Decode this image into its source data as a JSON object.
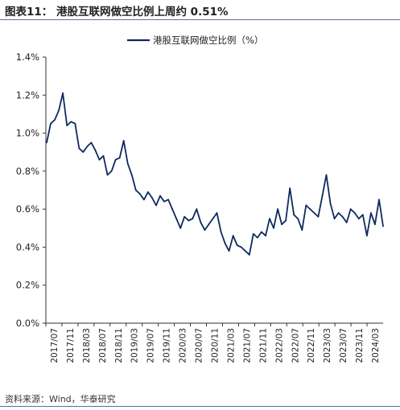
{
  "figure": {
    "title": "图表11：  港股互联网做空比例上周约 0.51%",
    "source": "资料来源：Wind，华泰研究"
  },
  "colors": {
    "line": "#0e2a5e",
    "axis": "#333333",
    "rule": "#5b6fa0"
  },
  "chart_data": {
    "type": "line",
    "title": "",
    "xlabel": "",
    "ylabel": "",
    "grid": false,
    "legend_position": "top-center",
    "ylim": [
      0.0,
      1.4
    ],
    "yticks": [
      "0.0%",
      "0.2%",
      "0.4%",
      "0.6%",
      "0.8%",
      "1.0%",
      "1.2%",
      "1.4%"
    ],
    "xticks": [
      "2017/07",
      "2017/11",
      "2018/03",
      "2018/07",
      "2018/11",
      "2019/03",
      "2019/07",
      "2019/11",
      "2020/03",
      "2020/07",
      "2020/11",
      "2021/03",
      "2021/07",
      "2021/11",
      "2022/03",
      "2022/07",
      "2022/11",
      "2023/03",
      "2023/07",
      "2023/11",
      "2024/03"
    ],
    "series": [
      {
        "name": "港股互联网做空比例（%）",
        "x": [
          "2017/07",
          "2017/08",
          "2017/09",
          "2017/10",
          "2017/11",
          "2017/12",
          "2018/01",
          "2018/02",
          "2018/03",
          "2018/04",
          "2018/05",
          "2018/06",
          "2018/07",
          "2018/08",
          "2018/09",
          "2018/10",
          "2018/11",
          "2018/12",
          "2019/01",
          "2019/02",
          "2019/03",
          "2019/04",
          "2019/05",
          "2019/06",
          "2019/07",
          "2019/08",
          "2019/09",
          "2019/10",
          "2019/11",
          "2019/12",
          "2020/01",
          "2020/02",
          "2020/03",
          "2020/04",
          "2020/05",
          "2020/06",
          "2020/07",
          "2020/08",
          "2020/09",
          "2020/10",
          "2020/11",
          "2020/12",
          "2021/01",
          "2021/02",
          "2021/03",
          "2021/04",
          "2021/05",
          "2021/06",
          "2021/07",
          "2021/08",
          "2021/09",
          "2021/10",
          "2021/11",
          "2021/12",
          "2022/01",
          "2022/02",
          "2022/03",
          "2022/04",
          "2022/05",
          "2022/06",
          "2022/07",
          "2022/08",
          "2022/09",
          "2022/10",
          "2022/11",
          "2022/12",
          "2023/01",
          "2023/02",
          "2023/03",
          "2023/04",
          "2023/05",
          "2023/06",
          "2023/07",
          "2023/08",
          "2023/09",
          "2023/10",
          "2023/11",
          "2023/12",
          "2024/01",
          "2024/02",
          "2024/03",
          "2024/04",
          "2024/05",
          "2024/06"
        ],
        "values": [
          0.95,
          1.05,
          1.07,
          1.12,
          1.21,
          1.04,
          1.06,
          1.05,
          0.92,
          0.9,
          0.93,
          0.95,
          0.91,
          0.86,
          0.88,
          0.78,
          0.8,
          0.86,
          0.87,
          0.96,
          0.84,
          0.78,
          0.7,
          0.68,
          0.65,
          0.69,
          0.66,
          0.62,
          0.67,
          0.64,
          0.65,
          0.6,
          0.55,
          0.5,
          0.56,
          0.54,
          0.55,
          0.6,
          0.53,
          0.49,
          0.52,
          0.55,
          0.58,
          0.48,
          0.42,
          0.38,
          0.46,
          0.41,
          0.4,
          0.38,
          0.36,
          0.47,
          0.45,
          0.48,
          0.46,
          0.55,
          0.5,
          0.6,
          0.52,
          0.54,
          0.71,
          0.57,
          0.55,
          0.49,
          0.62,
          0.6,
          0.58,
          0.56,
          0.67,
          0.78,
          0.63,
          0.55,
          0.58,
          0.56,
          0.53,
          0.6,
          0.58,
          0.55,
          0.57,
          0.46,
          0.58,
          0.52,
          0.65,
          0.51
        ]
      }
    ]
  }
}
